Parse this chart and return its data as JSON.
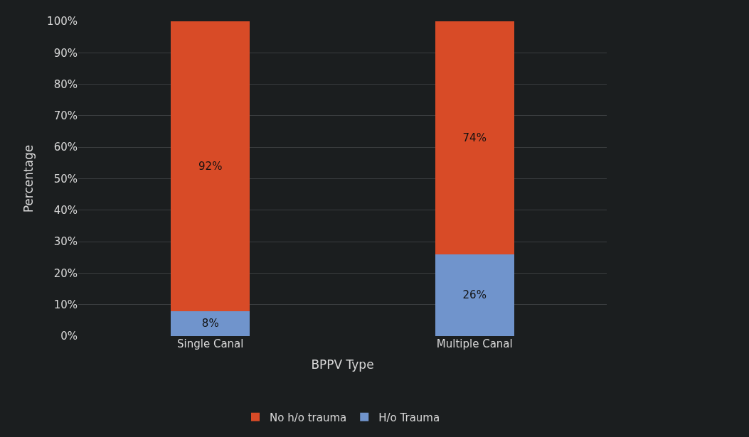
{
  "chart_data": {
    "type": "bar",
    "stacked": true,
    "xlabel": "BPPV Type",
    "ylabel": "Percentage",
    "categories": [
      "Single Canal",
      "Multiple Canal"
    ],
    "series": [
      {
        "name": "H/o Trauma",
        "color": "#7094cc",
        "values": [
          8,
          26
        ],
        "value_labels": [
          "8%",
          "26%"
        ]
      },
      {
        "name": "No h/o trauma",
        "color": "#d84b27",
        "values": [
          92,
          74
        ],
        "value_labels": [
          "92%",
          "74%"
        ]
      }
    ],
    "ylim": [
      0,
      100
    ],
    "yticks": [
      {
        "value": 0,
        "label": "0%"
      },
      {
        "value": 10,
        "label": "10%"
      },
      {
        "value": 20,
        "label": "20%"
      },
      {
        "value": 30,
        "label": "30%"
      },
      {
        "value": 40,
        "label": "40%"
      },
      {
        "value": 50,
        "label": "50%"
      },
      {
        "value": 60,
        "label": "60%"
      },
      {
        "value": 70,
        "label": "70%"
      },
      {
        "value": 80,
        "label": "80%"
      },
      {
        "value": 90,
        "label": "90%"
      },
      {
        "value": 100,
        "label": "100%"
      }
    ],
    "grid": "y",
    "legend": "bottom"
  }
}
